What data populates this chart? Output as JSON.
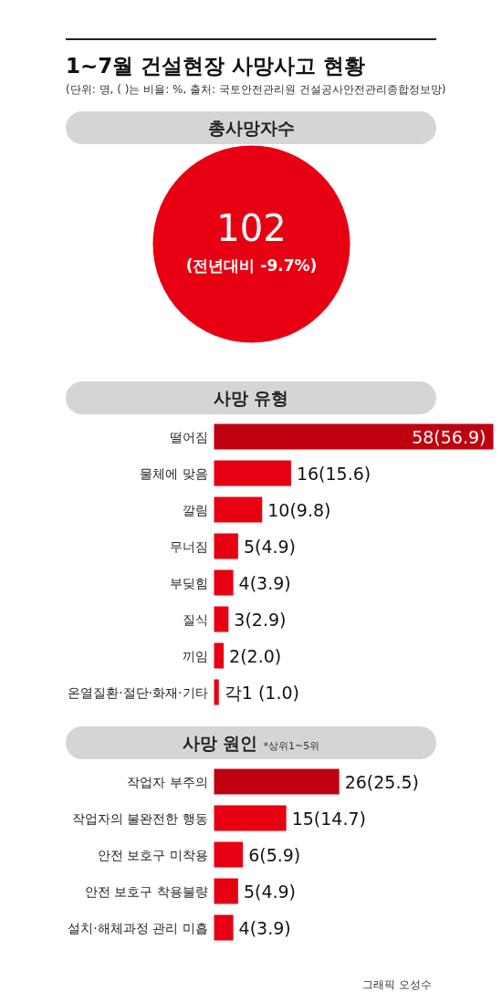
{
  "chart_data": [
    {
      "type": "other",
      "title": "1~7월 건설현장 사망사고 현황",
      "subtitle": "(단위: 명, ( )는 비율: %, 출처: 국토안전관리원 건설공사안전관리종합정보망)",
      "annotations": [
        "총사망자수",
        "102",
        "(전년대비 -9.7%)"
      ],
      "color": "#e60012"
    },
    {
      "type": "bar",
      "orientation": "horizontal",
      "title": "사망 유형",
      "categories": [
        "떨어짐",
        "물체에 맞음",
        "깔림",
        "무너짐",
        "부딪힘",
        "질식",
        "끼임",
        "온열질환·절단·화재·기타"
      ],
      "values": [
        58,
        16,
        10,
        5,
        4,
        3,
        2,
        1
      ],
      "colors": [
        "#bf000f",
        "#e60012",
        "#e60012",
        "#e60012",
        "#e60012",
        "#e60012",
        "#e60012",
        "#e60012"
      ],
      "value_labels": [
        "58(56.9)",
        "16(15.6)",
        "10(9.8)",
        "5(4.9)",
        "4(3.9)",
        "3(2.9)",
        "2(2.0)",
        "각1 (1.0)"
      ]
    },
    {
      "type": "bar",
      "orientation": "horizontal",
      "title": "사망 원인",
      "subtitle": "*상위1~5위",
      "categories": [
        "작업자 부주의",
        "작업자의 불완전한 행동",
        "안전 보호구 미착용",
        "안전 보호구 착용불량",
        "설치·해체과정 관리 미흡"
      ],
      "values": [
        26,
        15,
        6,
        5,
        4
      ],
      "colors": [
        "#bf000f",
        "#e60012",
        "#e60012",
        "#e60012",
        "#e60012"
      ],
      "value_labels": [
        "26(25.5)",
        "15(14.7)",
        "6(5.9)",
        "5(4.9)",
        "4(3.9)"
      ],
      "annotations": [
        "그래픽 오성수"
      ]
    }
  ]
}
